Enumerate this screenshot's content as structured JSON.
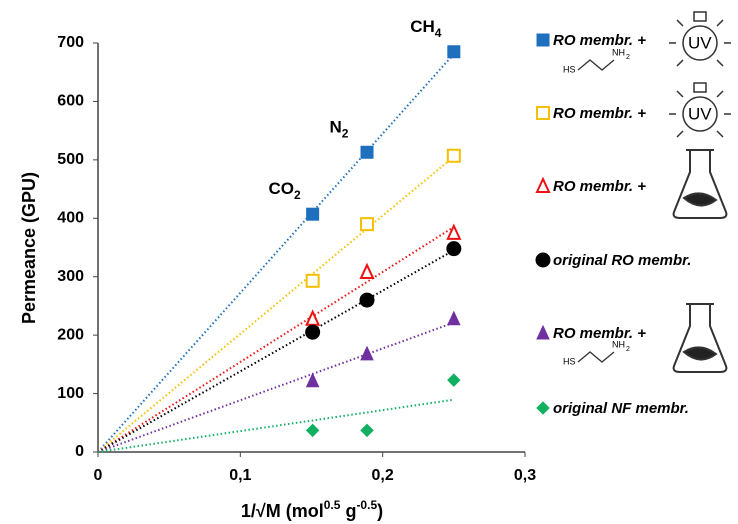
{
  "chart_data": {
    "type": "scatter",
    "x": [
      0.1508,
      0.189,
      0.25
    ],
    "xlim": [
      0,
      0.3
    ],
    "xticks": [
      0,
      {
        "value": 0.1,
        "label": "0,1"
      },
      {
        "value": 0.2,
        "label": "0,2"
      },
      {
        "value": 0.3,
        "label": "0,3"
      }
    ],
    "ylim": [
      0,
      700
    ],
    "yticks": [
      0,
      100,
      200,
      300,
      400,
      500,
      600,
      700
    ],
    "y_label": "Permeance  (GPU)",
    "x_label": [
      "1/√M (mol",
      "0.5",
      " g",
      "-0.5",
      ")"
    ],
    "annotations": [
      {
        "text": "CO",
        "sub": "2"
      },
      {
        "text": "N",
        "sub": "2"
      },
      {
        "text": "CH",
        "sub": "4"
      }
    ],
    "icon_labels": {
      "uv": "UV",
      "hs": "HS",
      "nh": "NH",
      "nh_sub": "2"
    },
    "trend_lines": true,
    "series": [
      {
        "name": "RO membr. +",
        "color": "#1f6fbf",
        "marker": "square",
        "values": [
          407,
          513,
          685
        ]
      },
      {
        "name": "RO membr. +",
        "color": "#f5c000",
        "marker": "square-open",
        "values": [
          293,
          390,
          507
        ]
      },
      {
        "name": "RO membr. +",
        "color": "#ee1111",
        "marker": "triangle-open",
        "values": [
          228,
          308,
          375
        ]
      },
      {
        "name": "original RO membr.",
        "color": "#000000",
        "marker": "circle",
        "values": [
          205,
          260,
          348
        ]
      },
      {
        "name": "RO membr. +",
        "color": "#7030a0",
        "marker": "triangle",
        "values": [
          122,
          168,
          228
        ]
      },
      {
        "name": "original NF membr.",
        "color": "#10b060",
        "marker": "diamond",
        "values": [
          37,
          37,
          123
        ]
      }
    ]
  }
}
